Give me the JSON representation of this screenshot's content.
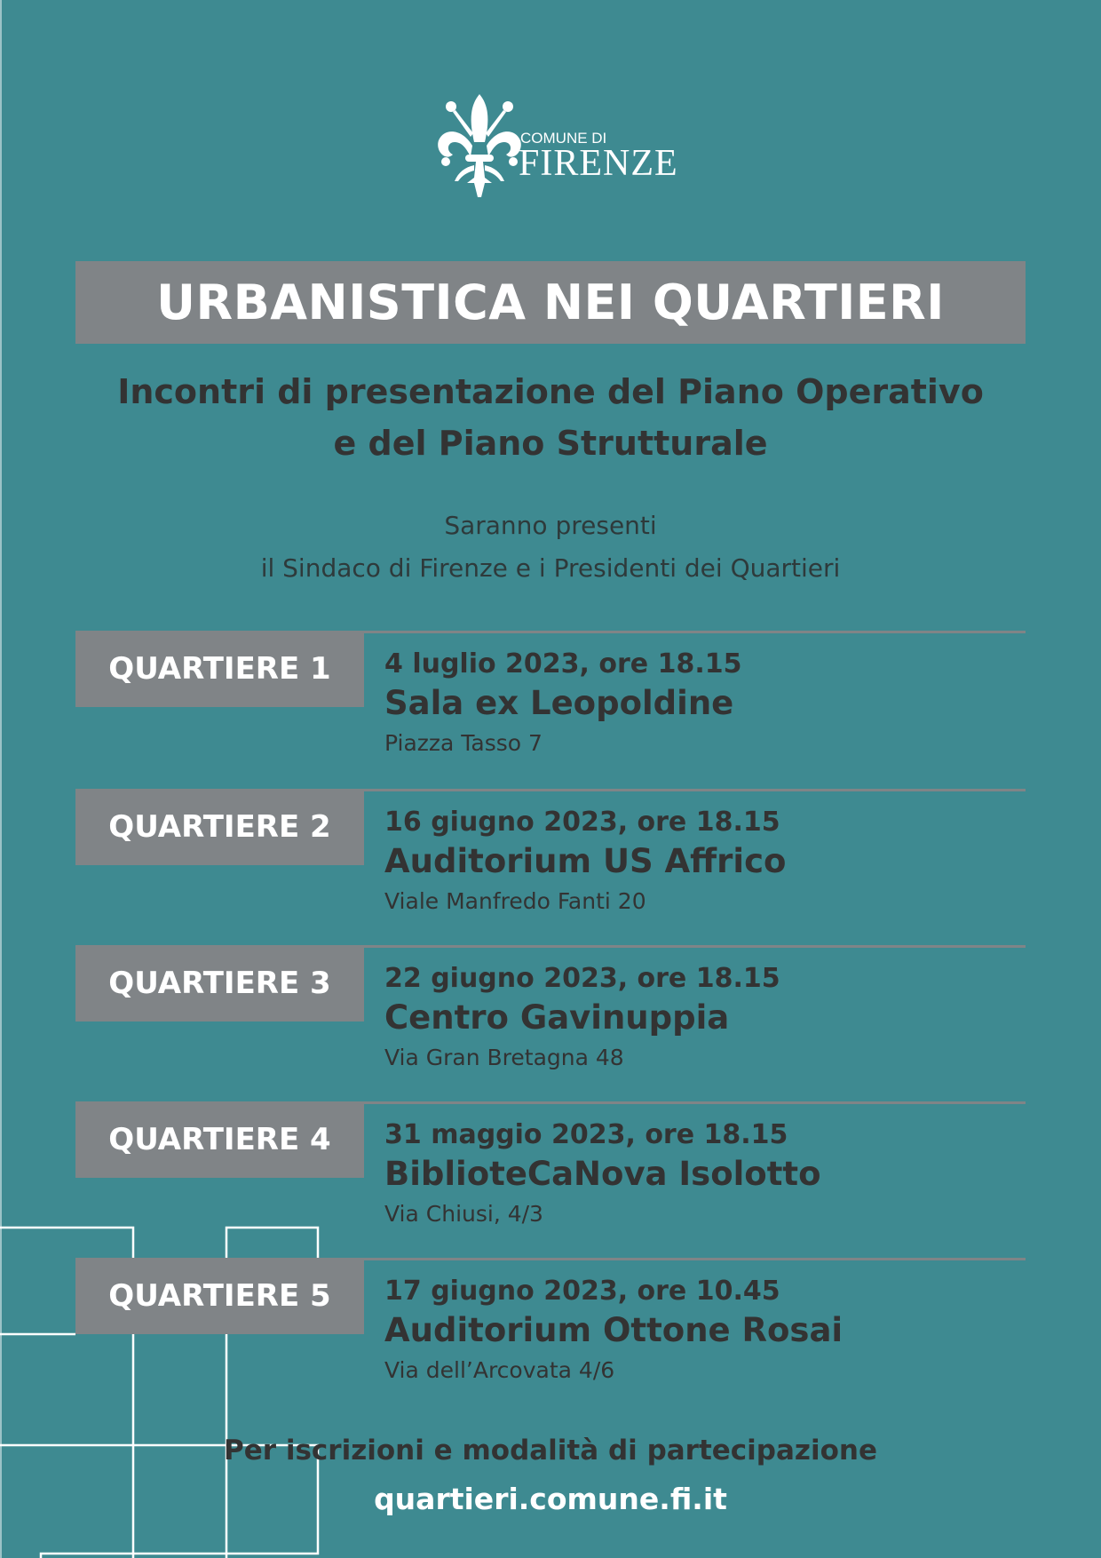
{
  "logo": {
    "line1": "COMUNE DI",
    "line2": "FIRENZE",
    "icon": "fleur-de-lis-icon"
  },
  "title": "URBANISTICA NEI QUARTIERI",
  "subtitle": [
    "Incontri di presentazione del Piano Operativo",
    "e del Piano Strutturale"
  ],
  "intro": [
    "Saranno presenti",
    "il Sindaco di Firenze e i Presidenti dei Quartieri"
  ],
  "events": [
    {
      "label": "QUARTIERE 1",
      "date": "4 luglio 2023, ore 18.15",
      "venue": "Sala ex Leopoldine",
      "address": "Piazza Tasso 7"
    },
    {
      "label": "QUARTIERE 2",
      "date": "16 giugno 2023, ore 18.15",
      "venue": "Auditorium US Affrico",
      "address": "Viale Manfredo Fanti 20"
    },
    {
      "label": "QUARTIERE 3",
      "date": "22 giugno 2023, ore 18.15",
      "venue": "Centro Gavinuppia",
      "address": "Via Gran Bretagna 48"
    },
    {
      "label": "QUARTIERE 4",
      "date": "31 maggio 2023, ore 18.15",
      "venue": "BiblioteCaNova Isolotto",
      "address": "Via Chiusi, 4/3"
    },
    {
      "label": "QUARTIERE 5",
      "date": "17 giugno 2023, ore 10.45",
      "venue": "Auditorium Ottone Rosai",
      "address": "Via dell’Arcovata 4/6"
    }
  ],
  "footer": {
    "info": "Per iscrizioni e modalità di partecipazione",
    "url": "quartieri.comune.fi.it"
  },
  "colors": {
    "background": "#3e8a91",
    "bar": "#808487",
    "text": "#333333",
    "accent": "#ffffff"
  }
}
